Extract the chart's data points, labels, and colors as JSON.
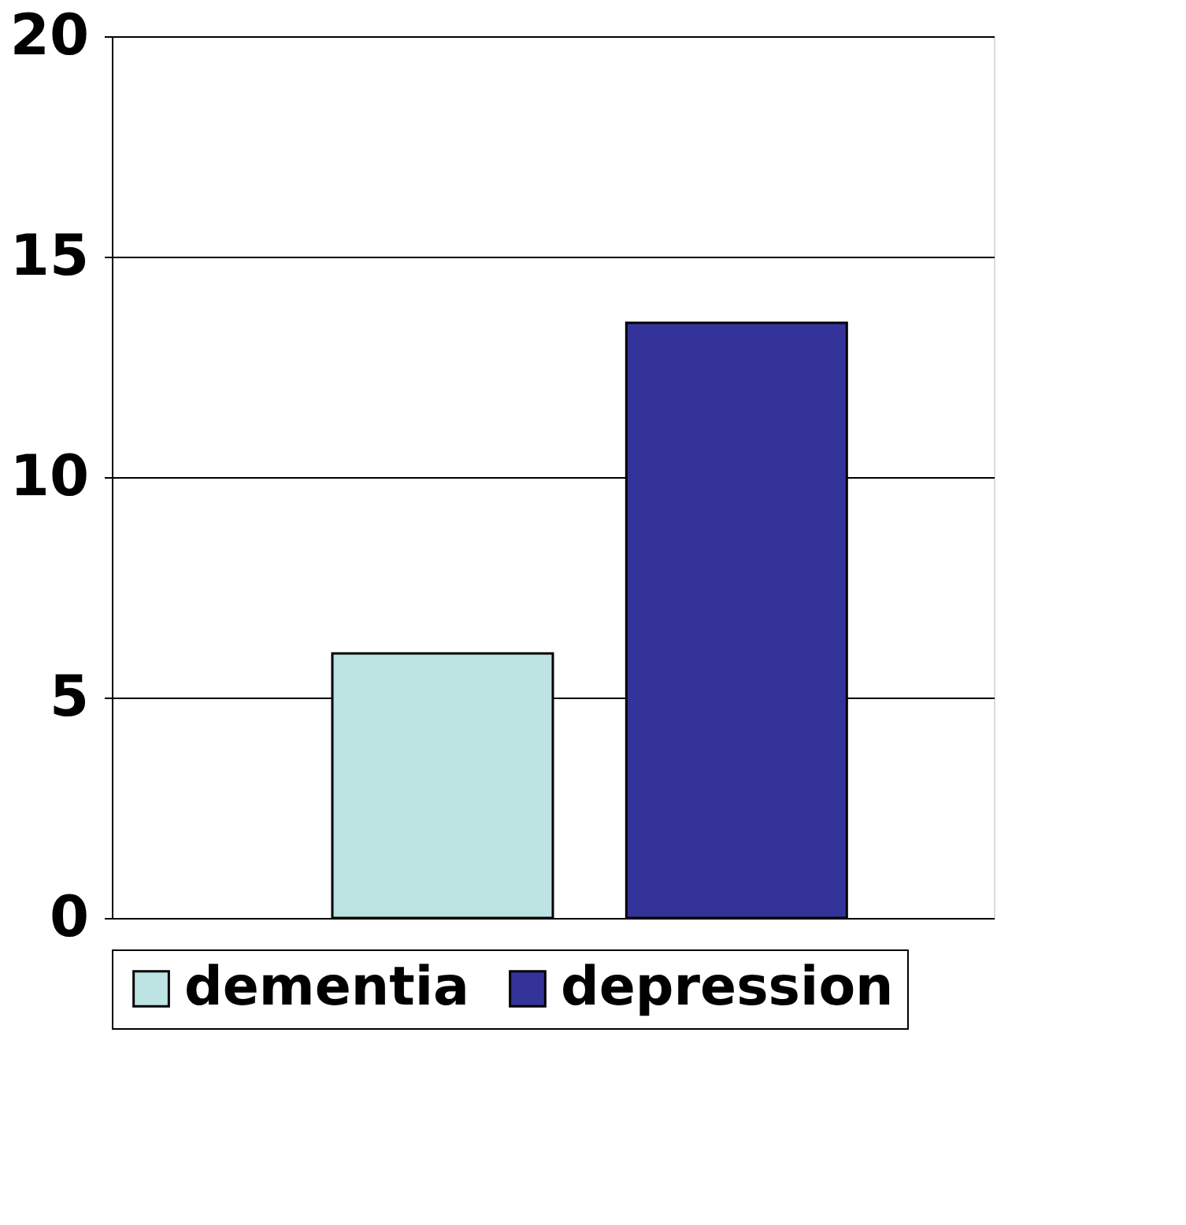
{
  "chart_data": {
    "type": "bar",
    "categories": [
      null
    ],
    "series": [
      {
        "name": "dementia",
        "color": "#bde3e3",
        "values": [
          6
        ]
      },
      {
        "name": "depression",
        "color": "#333399",
        "values": [
          13.5
        ]
      }
    ],
    "ylim": [
      0,
      20
    ],
    "yticks": [
      0,
      5,
      10,
      15,
      20
    ],
    "grid": "y",
    "legend": "bottom"
  }
}
